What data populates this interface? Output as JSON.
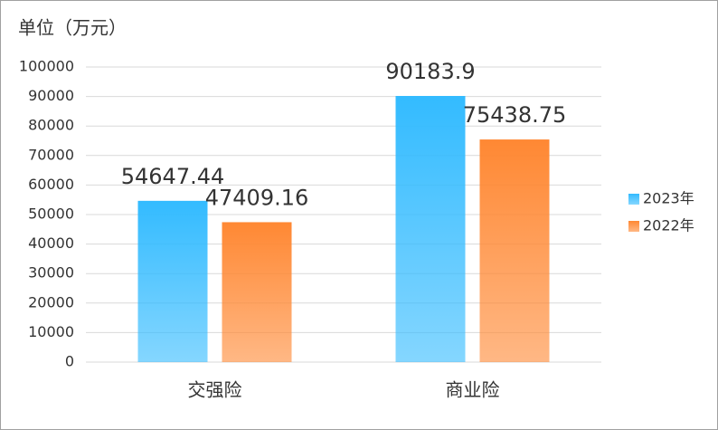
{
  "chart_data": {
    "type": "bar",
    "y_label": "单位（万元）",
    "categories": [
      "交强险",
      "商业险"
    ],
    "series": [
      {
        "name": "2023年",
        "color": "#33bbff",
        "values": [
          54647.44,
          90183.9
        ]
      },
      {
        "name": "2022年",
        "color": "#ff8833",
        "values": [
          47409.16,
          75438.75
        ]
      }
    ],
    "ylim": [
      0,
      100000
    ],
    "yticks": [
      0,
      10000,
      20000,
      30000,
      40000,
      50000,
      60000,
      70000,
      80000,
      90000,
      100000
    ],
    "grid": true,
    "legend": "right"
  }
}
